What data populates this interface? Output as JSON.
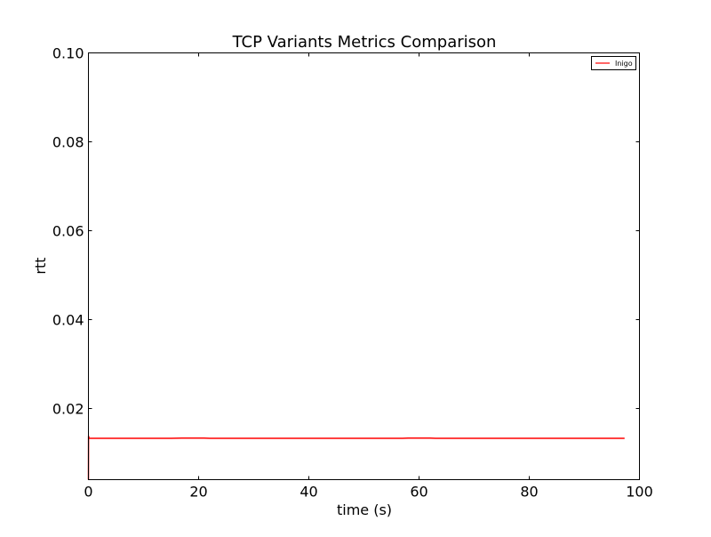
{
  "chart_data": {
    "type": "line",
    "title": "TCP Variants Metrics Comparison",
    "xlabel": "time (s)",
    "ylabel": "rtt",
    "xlim": [
      0,
      100
    ],
    "ylim": [
      0.004,
      0.1
    ],
    "xticks": [
      0,
      20,
      40,
      60,
      80,
      100
    ],
    "xtick_labels": [
      "0",
      "20",
      "40",
      "60",
      "80",
      "100"
    ],
    "yticks": [
      0.02,
      0.04,
      0.06,
      0.08,
      0.1
    ],
    "ytick_labels": [
      "0.02",
      "0.04",
      "0.06",
      "0.08",
      "0.10"
    ],
    "grid": false,
    "legend_position": "top-right",
    "series": [
      {
        "name": "Inigo",
        "color": "#ff0000",
        "x": [
          0.0,
          0.02,
          0.05,
          0.1,
          0.2,
          1,
          5,
          10,
          15,
          17,
          19,
          21,
          22,
          30,
          40,
          50,
          57,
          58,
          60,
          62,
          63,
          70,
          80,
          90,
          97.3
        ],
        "y": [
          0.004,
          0.0138,
          0.0137,
          0.0134,
          0.0133,
          0.0133,
          0.0133,
          0.0133,
          0.0133,
          0.01335,
          0.01335,
          0.01335,
          0.0133,
          0.0133,
          0.0133,
          0.0133,
          0.0133,
          0.01335,
          0.01335,
          0.01335,
          0.0133,
          0.0133,
          0.0133,
          0.0133,
          0.0133
        ]
      }
    ]
  }
}
